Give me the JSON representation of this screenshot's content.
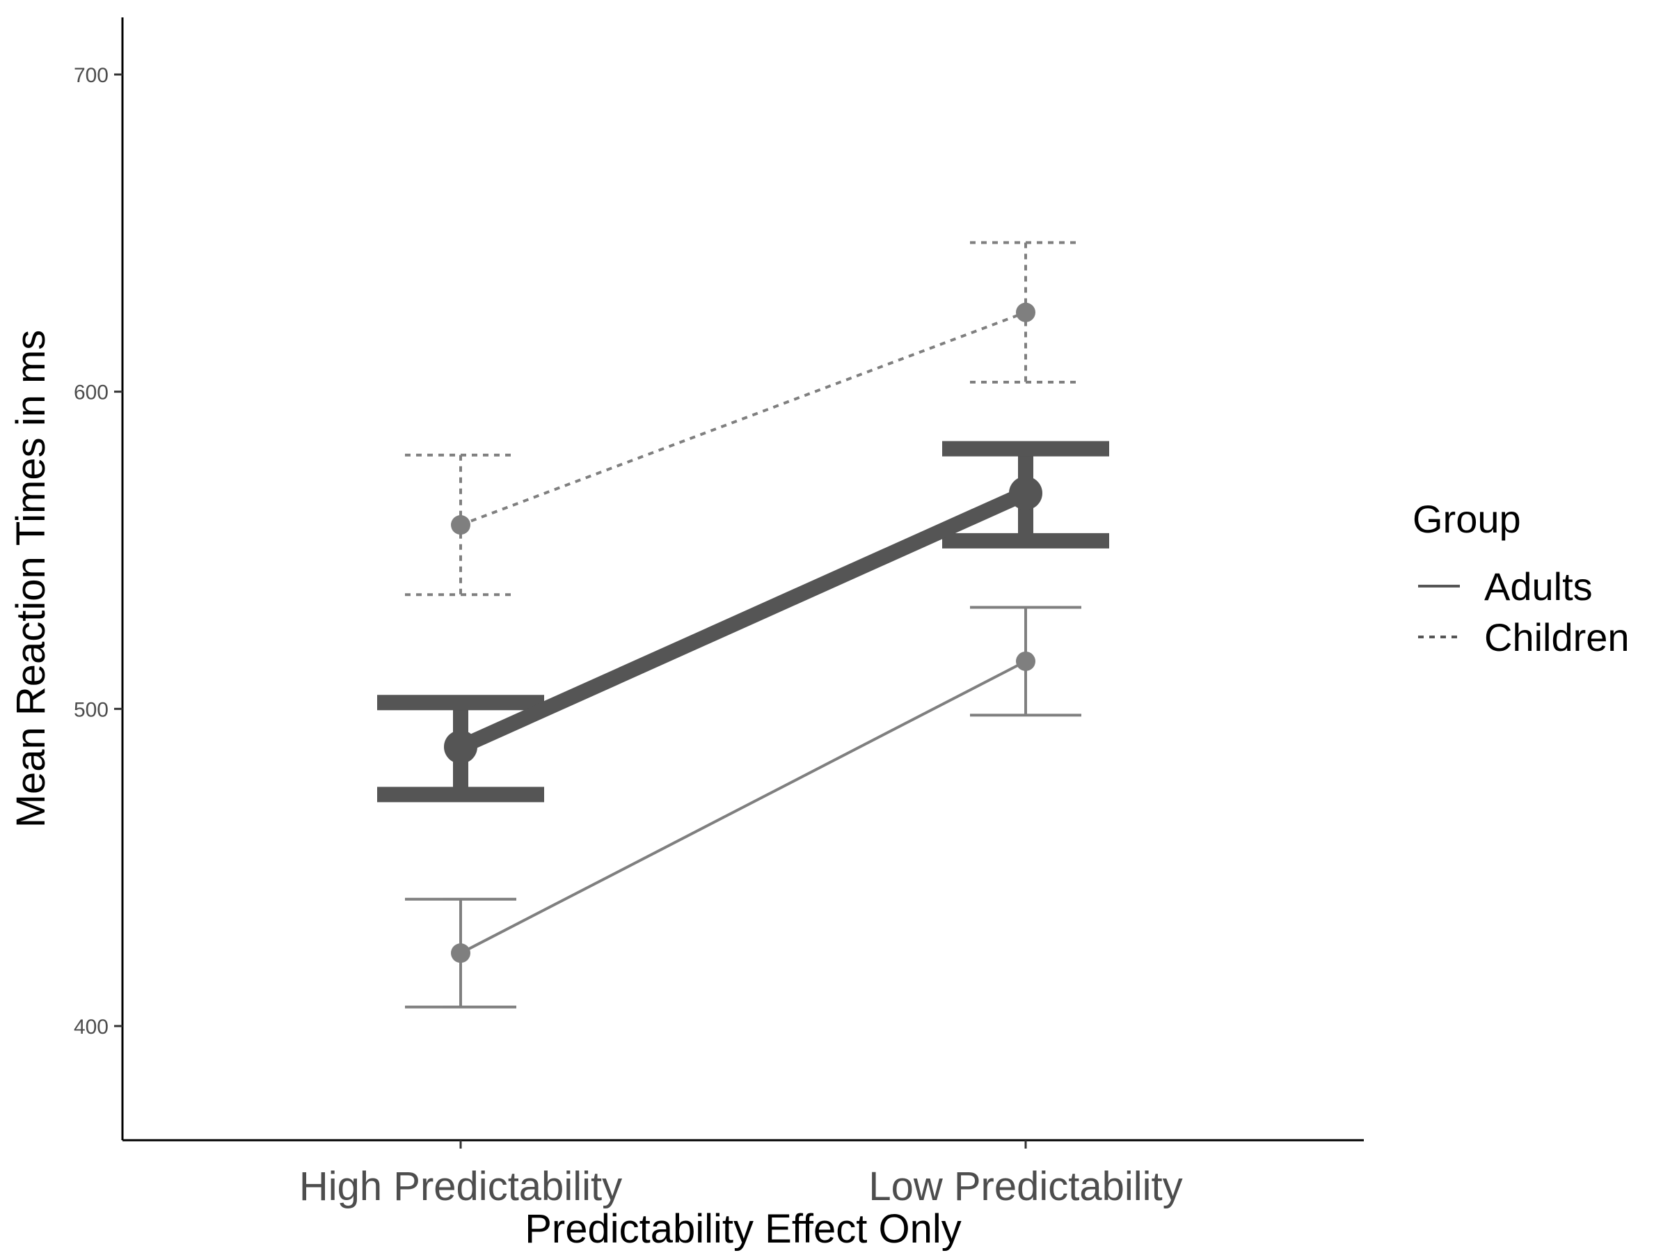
{
  "chart_data": {
    "type": "line",
    "xlabel": "Predictability Effect Only",
    "ylabel": "Mean Reaction Times in ms",
    "categories": [
      "High Predictability",
      "Low Predictability"
    ],
    "ylim": [
      364,
      718
    ],
    "yticks": [
      400,
      500,
      600,
      700
    ],
    "grid": false,
    "legend": {
      "title": "Group",
      "position": "right",
      "entries": [
        "Adults",
        "Children"
      ]
    },
    "series": [
      {
        "name": "Adults",
        "linestyle": "solid",
        "color": "#555555",
        "emphasis": false,
        "values": [
          423,
          515
        ],
        "error_low": [
          406,
          498
        ],
        "error_high": [
          440,
          532
        ]
      },
      {
        "name": "Children",
        "linestyle": "dashed",
        "color": "#555555",
        "emphasis": false,
        "values": [
          558,
          625
        ],
        "error_low": [
          536,
          603
        ],
        "error_high": [
          580,
          647
        ]
      },
      {
        "linestyle": "solid",
        "color": "#555555",
        "emphasis": true,
        "values": [
          488,
          568
        ],
        "error_low": [
          473,
          553
        ],
        "error_high": [
          502,
          582
        ]
      }
    ]
  }
}
